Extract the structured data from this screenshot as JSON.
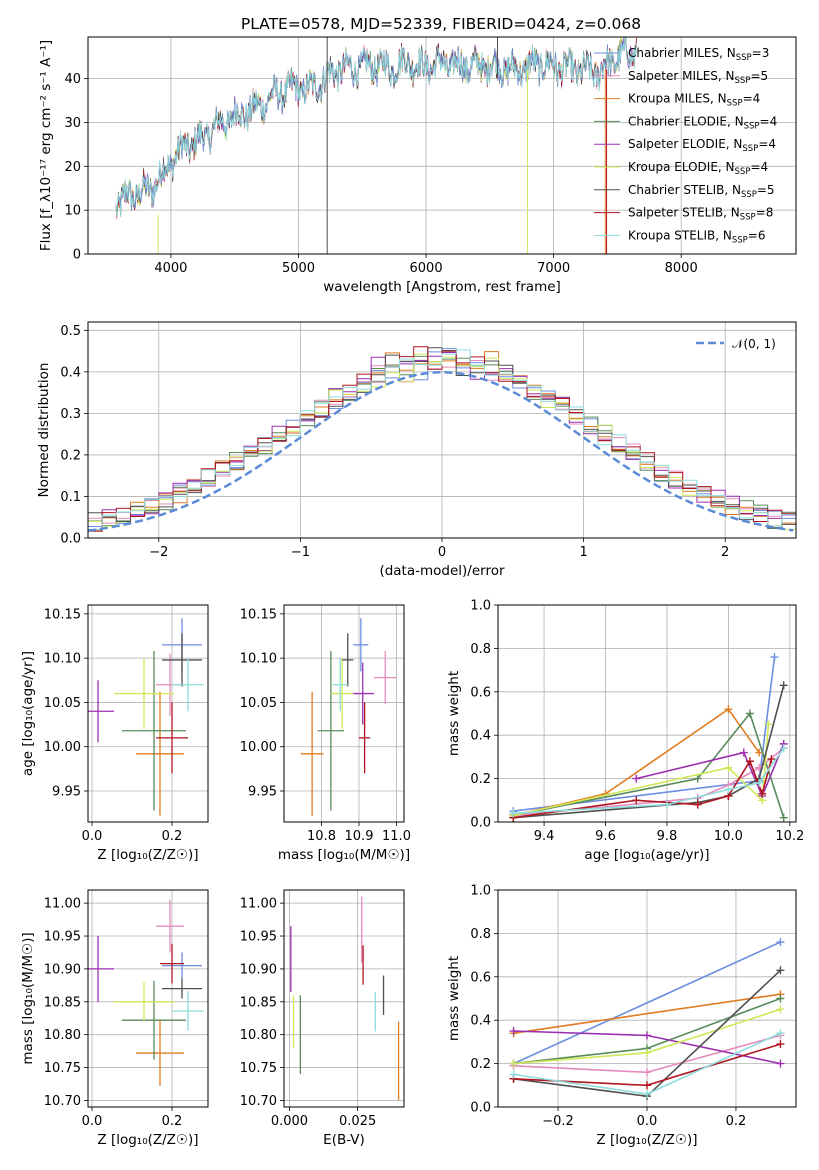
{
  "title": "PLATE=0578, MJD=52339, FIBERID=0424, z=0.068",
  "colors": {
    "Chabrier MILES": "#6c8ee0",
    "Salpeter MILES": "#e58bbd",
    "Kroupa MILES": "#e07c22",
    "Chabrier ELODIE": "#5a8a5a",
    "Salpeter ELODIE": "#9b2fb0",
    "Kroupa ELODIE": "#cfe85a",
    "Chabrier STELIB": "#505050",
    "Salpeter STELIB": "#b01520",
    "Kroupa STELIB": "#8fdcdc"
  },
  "chart_data": [
    {
      "id": "spectrum",
      "type": "line",
      "title": "PLATE=0578, MJD=52339, FIBERID=0424, z=0.068",
      "xlabel": "wavelength [Angstrom, rest frame]",
      "ylabel": "Flux [f_λ10⁻¹⁷ erg cm⁻² s⁻¹ A⁻¹]",
      "xlim": [
        3350,
        8900
      ],
      "ylim": [
        0,
        49.5
      ],
      "xticks": [
        4000,
        5000,
        6000,
        7000,
        8000
      ],
      "yticks": [
        0,
        10,
        20,
        30,
        40
      ],
      "grid": true,
      "legend": "upper right",
      "continuum": {
        "x": [
          3570,
          3650,
          3750,
          3850,
          3950,
          4050,
          4150,
          4250,
          4350,
          4500,
          4650,
          4800,
          4900,
          5000,
          5100,
          5200,
          5300,
          5450,
          5600,
          5750,
          5850,
          5950,
          6100,
          6300,
          6500,
          6700,
          6900,
          7050,
          7200,
          7350,
          7500,
          7650
        ],
        "y": [
          11,
          13,
          14,
          15,
          19,
          23,
          25,
          26.5,
          29,
          31.5,
          33,
          36,
          37.5,
          38,
          37.5,
          40,
          42,
          42.5,
          43,
          42.5,
          44,
          42.5,
          43.5,
          43,
          43,
          42,
          43.5,
          42.5,
          42,
          41.5,
          45,
          46.5
        ]
      },
      "spikes": [
        {
          "x": 3900,
          "ymin": 0,
          "ymax": 9,
          "series": "Kroupa ELODIE"
        },
        {
          "x": 5225,
          "ymin": 0,
          "ymax": 49.5,
          "series": "Chabrier STELIB"
        },
        {
          "x": 6560,
          "ymin": 40,
          "ymax": 49.5,
          "series": "Chabrier STELIB"
        },
        {
          "x": 6795,
          "ymin": 0,
          "ymax": 42,
          "series": "Kroupa ELODIE"
        },
        {
          "x": 7405,
          "ymin": 0,
          "ymax": 42,
          "series": "Kroupa MILES"
        },
        {
          "x": 7415,
          "ymin": 0,
          "ymax": 42,
          "series": "Salpeter STELIB"
        }
      ],
      "legend_entries": [
        {
          "series": "Chabrier MILES",
          "label": "Chabrier MILES, N",
          "sub": "SSP",
          "n": "=3"
        },
        {
          "series": "Salpeter MILES",
          "label": "Salpeter MILES, N",
          "sub": "SSP",
          "n": "=5"
        },
        {
          "series": "Kroupa MILES",
          "label": "Kroupa MILES, N",
          "sub": "SSP",
          "n": "=4"
        },
        {
          "series": "Chabrier ELODIE",
          "label": "Chabrier ELODIE, N",
          "sub": "SSP",
          "n": "=4"
        },
        {
          "series": "Salpeter ELODIE",
          "label": "Salpeter ELODIE, N",
          "sub": "SSP",
          "n": "=4"
        },
        {
          "series": "Kroupa ELODIE",
          "label": "Kroupa ELODIE, N",
          "sub": "SSP",
          "n": "=4"
        },
        {
          "series": "Chabrier STELIB",
          "label": "Chabrier STELIB, N",
          "sub": "SSP",
          "n": "=5"
        },
        {
          "series": "Salpeter STELIB",
          "label": "Salpeter STELIB, N",
          "sub": "SSP",
          "n": "=8"
        },
        {
          "series": "Kroupa STELIB",
          "label": "Kroupa STELIB, N",
          "sub": "SSP",
          "n": "=6"
        }
      ]
    },
    {
      "id": "residuals",
      "type": "histogram",
      "xlabel": "(data-model)/error",
      "ylabel": "Normed distribution",
      "xlim": [
        -2.5,
        2.5
      ],
      "ylim": [
        0,
        0.52
      ],
      "xticks": [
        -2,
        -1,
        0,
        1,
        2
      ],
      "yticks": [
        0.0,
        0.1,
        0.2,
        0.3,
        0.4,
        0.5
      ],
      "grid": true,
      "legend": "upper right",
      "reference": {
        "label": "𝒩(0, 1)",
        "mean": 0,
        "sigma": 1,
        "color": "#5b8bd6"
      },
      "bin_width": 0.1,
      "approx_peak": 0.42
    },
    {
      "id": "age-vs-Z",
      "type": "errorbar",
      "xlabel": "Z [log₁₀(Z/Z☉)]",
      "ylabel": "age  [log₁₀(age/yr)]",
      "xlim": [
        -0.01,
        0.29
      ],
      "ylim": [
        9.915,
        10.16
      ],
      "xticks": [
        0.0,
        0.2
      ],
      "yticks": [
        9.95,
        10.0,
        10.05,
        10.1,
        10.15
      ],
      "grid": true,
      "points": [
        {
          "series": "Chabrier MILES",
          "x": 0.225,
          "y": 10.115,
          "xerr": 0.05,
          "yerr": 0.03
        },
        {
          "series": "Salpeter MILES",
          "x": 0.195,
          "y": 10.07,
          "xerr": 0.035,
          "yerr": 0.035
        },
        {
          "series": "Kroupa MILES",
          "x": 0.17,
          "y": 9.992,
          "xerr": 0.06,
          "yerr": 0.07
        },
        {
          "series": "Chabrier ELODIE",
          "x": 0.155,
          "y": 10.018,
          "xerr": 0.08,
          "yerr": 0.09
        },
        {
          "series": "Salpeter ELODIE",
          "x": 0.015,
          "y": 10.04,
          "xerr": 0.04,
          "yerr": 0.035
        },
        {
          "series": "Kroupa ELODIE",
          "x": 0.13,
          "y": 10.06,
          "xerr": 0.075,
          "yerr": 0.04
        },
        {
          "series": "Chabrier STELIB",
          "x": 0.225,
          "y": 10.098,
          "xerr": 0.05,
          "yerr": 0.03
        },
        {
          "series": "Salpeter STELIB",
          "x": 0.2,
          "y": 10.01,
          "xerr": 0.04,
          "yerr": 0.04
        },
        {
          "series": "Kroupa STELIB",
          "x": 0.24,
          "y": 10.07,
          "xerr": 0.04,
          "yerr": 0.03
        }
      ]
    },
    {
      "id": "age-vs-mass",
      "type": "errorbar",
      "xlabel": "mass [log₁₀(M/M☉)]",
      "ylim": [
        9.915,
        10.16
      ],
      "xlim": [
        10.7,
        11.02
      ],
      "xticks": [
        10.8,
        10.9,
        11.0
      ],
      "yticks": [
        9.95,
        10.0,
        10.05,
        10.1,
        10.15
      ],
      "grid": true,
      "points": [
        {
          "series": "Chabrier MILES",
          "x": 10.905,
          "y": 10.115,
          "xerr": 0.02,
          "yerr": 0.03
        },
        {
          "series": "Salpeter MILES",
          "x": 10.97,
          "y": 10.078,
          "xerr": 0.03,
          "yerr": 0.03
        },
        {
          "series": "Kroupa MILES",
          "x": 10.775,
          "y": 9.992,
          "xerr": 0.03,
          "yerr": 0.07
        },
        {
          "series": "Chabrier ELODIE",
          "x": 10.825,
          "y": 10.018,
          "xerr": 0.035,
          "yerr": 0.09
        },
        {
          "series": "Salpeter ELODIE",
          "x": 10.91,
          "y": 10.06,
          "xerr": 0.03,
          "yerr": 0.035
        },
        {
          "series": "Kroupa ELODIE",
          "x": 10.855,
          "y": 10.06,
          "xerr": 0.03,
          "yerr": 0.04
        },
        {
          "series": "Chabrier STELIB",
          "x": 10.87,
          "y": 10.098,
          "xerr": 0.015,
          "yerr": 0.03
        },
        {
          "series": "Salpeter STELIB",
          "x": 10.915,
          "y": 10.01,
          "xerr": 0.015,
          "yerr": 0.04
        },
        {
          "series": "Kroupa STELIB",
          "x": 10.85,
          "y": 10.07,
          "xerr": 0.02,
          "yerr": 0.03
        }
      ]
    },
    {
      "id": "weight-vs-age",
      "type": "line",
      "xlabel": "age  [log₁₀(age/yr)]",
      "ylabel": "mass weight",
      "xlim": [
        9.25,
        10.22
      ],
      "ylim": [
        0,
        1.0
      ],
      "xticks": [
        9.4,
        9.6,
        9.8,
        10.0,
        10.2
      ],
      "yticks": [
        0.0,
        0.2,
        0.4,
        0.6,
        0.8,
        1.0
      ],
      "grid": true,
      "series": [
        {
          "name": "Chabrier MILES",
          "x": [
            9.3,
            10.1,
            10.15
          ],
          "y": [
            0.05,
            0.19,
            0.76
          ]
        },
        {
          "name": "Salpeter MILES",
          "x": [
            9.3,
            9.9,
            10.0,
            10.1,
            10.18
          ],
          "y": [
            0.03,
            0.11,
            0.17,
            0.25,
            0.34
          ]
        },
        {
          "name": "Kroupa MILES",
          "x": [
            9.3,
            9.6,
            10.0,
            10.1
          ],
          "y": [
            0.03,
            0.13,
            0.52,
            0.32
          ]
        },
        {
          "name": "Chabrier ELODIE",
          "x": [
            9.3,
            9.9,
            10.07,
            10.18
          ],
          "y": [
            0.03,
            0.2,
            0.5,
            0.02
          ]
        },
        {
          "name": "Salpeter ELODIE",
          "x": [
            9.7,
            10.05,
            10.11,
            10.18
          ],
          "y": [
            0.2,
            0.32,
            0.12,
            0.36
          ]
        },
        {
          "name": "Kroupa ELODIE",
          "x": [
            9.3,
            10.0,
            10.11,
            10.13
          ],
          "y": [
            0.03,
            0.25,
            0.1,
            0.45
          ]
        },
        {
          "name": "Chabrier STELIB",
          "x": [
            9.3,
            9.9,
            10.0,
            10.1,
            10.18
          ],
          "y": [
            0.02,
            0.09,
            0.12,
            0.2,
            0.63
          ]
        },
        {
          "name": "Salpeter STELIB",
          "x": [
            9.3,
            9.7,
            9.9,
            10.0,
            10.07,
            10.11,
            10.14
          ],
          "y": [
            0.02,
            0.1,
            0.08,
            0.12,
            0.28,
            0.13,
            0.29
          ]
        },
        {
          "name": "Kroupa STELIB",
          "x": [
            9.3,
            9.8,
            10.0,
            10.1,
            10.18
          ],
          "y": [
            0.04,
            0.08,
            0.15,
            0.18,
            0.34
          ]
        }
      ]
    },
    {
      "id": "mass-vs-Z",
      "type": "errorbar",
      "xlabel": "Z [log₁₀(Z/Z☉)]",
      "ylabel": "mass [log₁₀(M/M☉)]",
      "xlim": [
        -0.01,
        0.29
      ],
      "ylim": [
        10.69,
        11.02
      ],
      "xticks": [
        0.0,
        0.2
      ],
      "yticks": [
        10.7,
        10.75,
        10.8,
        10.85,
        10.9,
        10.95,
        11.0
      ],
      "grid": true,
      "points": [
        {
          "series": "Chabrier MILES",
          "x": 0.225,
          "y": 10.905,
          "xerr": 0.05,
          "yerr": 0.02
        },
        {
          "series": "Salpeter MILES",
          "x": 0.195,
          "y": 10.965,
          "xerr": 0.035,
          "yerr": 0.04
        },
        {
          "series": "Kroupa MILES",
          "x": 0.17,
          "y": 10.772,
          "xerr": 0.06,
          "yerr": 0.05
        },
        {
          "series": "Chabrier ELODIE",
          "x": 0.155,
          "y": 10.822,
          "xerr": 0.08,
          "yerr": 0.06
        },
        {
          "series": "Salpeter ELODIE",
          "x": 0.015,
          "y": 10.9,
          "xerr": 0.04,
          "yerr": 0.05
        },
        {
          "series": "Kroupa ELODIE",
          "x": 0.13,
          "y": 10.85,
          "xerr": 0.075,
          "yerr": 0.03
        },
        {
          "series": "Chabrier STELIB",
          "x": 0.225,
          "y": 10.87,
          "xerr": 0.05,
          "yerr": 0.015
        },
        {
          "series": "Salpeter STELIB",
          "x": 0.2,
          "y": 10.908,
          "xerr": 0.03,
          "yerr": 0.03
        },
        {
          "series": "Kroupa STELIB",
          "x": 0.24,
          "y": 10.836,
          "xerr": 0.04,
          "yerr": 0.03
        }
      ]
    },
    {
      "id": "mass-vs-EBV",
      "type": "errorbar",
      "xlabel": "E(B-V)",
      "xlim": [
        -0.002,
        0.042
      ],
      "ylim": [
        10.69,
        11.02
      ],
      "xticks": [
        0.0,
        0.025
      ],
      "yticks": [
        10.7,
        10.75,
        10.8,
        10.85,
        10.9,
        10.95,
        11.0
      ],
      "grid": true,
      "points": [
        {
          "series": "Salpeter ELODIE",
          "x": 0.0005,
          "y": 10.915,
          "xerr": 0,
          "yerr": 0.05
        },
        {
          "series": "Salpeter MILES",
          "x": 0.0265,
          "y": 10.96,
          "xerr": 0,
          "yerr": 0.05
        },
        {
          "series": "Salpeter STELIB",
          "x": 0.027,
          "y": 10.906,
          "xerr": 0,
          "yerr": 0.03
        },
        {
          "series": "Kroupa ELODIE",
          "x": 0.0015,
          "y": 10.82,
          "xerr": 0,
          "yerr": 0.04
        },
        {
          "series": "Chabrier ELODIE",
          "x": 0.004,
          "y": 10.8,
          "xerr": 0,
          "yerr": 0.06
        },
        {
          "series": "Kroupa STELIB",
          "x": 0.0315,
          "y": 10.835,
          "xerr": 0,
          "yerr": 0.03
        },
        {
          "series": "Chabrier STELIB",
          "x": 0.0345,
          "y": 10.86,
          "xerr": 0,
          "yerr": 0.03
        },
        {
          "series": "Kroupa MILES",
          "x": 0.04,
          "y": 10.76,
          "xerr": 0,
          "yerr": 0.06
        }
      ]
    },
    {
      "id": "weight-vs-Z",
      "type": "line",
      "xlabel": "Z [log₁₀(Z/Z☉)]",
      "ylabel": "mass weight",
      "xlim": [
        -0.335,
        0.335
      ],
      "ylim": [
        0,
        1.0
      ],
      "xticks": [
        -0.2,
        0.0,
        0.2
      ],
      "yticks": [
        0.0,
        0.2,
        0.4,
        0.6,
        0.8,
        1.0
      ],
      "grid": true,
      "series": [
        {
          "name": "Chabrier MILES",
          "x": [
            -0.3,
            0.3
          ],
          "y": [
            0.2,
            0.76
          ]
        },
        {
          "name": "Salpeter MILES",
          "x": [
            -0.3,
            0.0,
            0.3
          ],
          "y": [
            0.19,
            0.16,
            0.33
          ]
        },
        {
          "name": "Kroupa MILES",
          "x": [
            -0.3,
            0.3
          ],
          "y": [
            0.34,
            0.52
          ]
        },
        {
          "name": "Chabrier ELODIE",
          "x": [
            -0.3,
            0.0,
            0.3
          ],
          "y": [
            0.2,
            0.27,
            0.5
          ]
        },
        {
          "name": "Salpeter ELODIE",
          "x": [
            -0.3,
            0.0,
            0.3
          ],
          "y": [
            0.35,
            0.33,
            0.2
          ]
        },
        {
          "name": "Kroupa ELODIE",
          "x": [
            -0.3,
            0.0,
            0.3
          ],
          "y": [
            0.2,
            0.25,
            0.45
          ]
        },
        {
          "name": "Chabrier STELIB",
          "x": [
            -0.3,
            0.0,
            0.3
          ],
          "y": [
            0.13,
            0.05,
            0.63
          ]
        },
        {
          "name": "Salpeter STELIB",
          "x": [
            -0.3,
            0.0,
            0.3
          ],
          "y": [
            0.13,
            0.1,
            0.29
          ]
        },
        {
          "name": "Kroupa STELIB",
          "x": [
            -0.3,
            0.0,
            0.3
          ],
          "y": [
            0.15,
            0.06,
            0.34
          ]
        }
      ]
    }
  ]
}
